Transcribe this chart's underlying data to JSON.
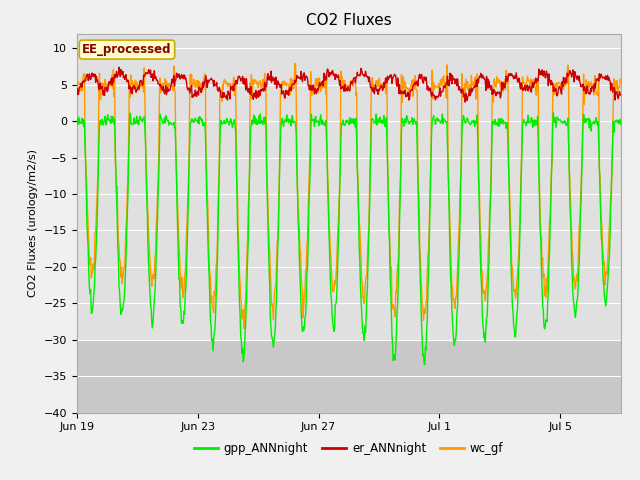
{
  "title": "CO2 Fluxes",
  "ylabel": "CO2 Fluxes (urology/m2/s)",
  "ylim": [
    -40,
    12
  ],
  "yticks": [
    -40,
    -35,
    -30,
    -25,
    -20,
    -15,
    -10,
    -5,
    0,
    5,
    10
  ],
  "fig_bg": "#f0f0f0",
  "plot_bg": "#e0e0e0",
  "shade_below": -30,
  "shade_color": "#c8c8c8",
  "title_fontsize": 11,
  "label_fontsize": 8,
  "tick_fontsize": 8,
  "annotation_text": "EE_processed",
  "annotation_color": "#8b0000",
  "annotation_bg": "#ffffcc",
  "annotation_border": "#ccaa00",
  "grid_color": "#ffffff",
  "series": [
    {
      "name": "gpp_ANNnight",
      "color": "#00ee00",
      "lw": 1.0
    },
    {
      "name": "er_ANNnight",
      "color": "#cc0000",
      "lw": 1.0
    },
    {
      "name": "wc_gf",
      "color": "#ff9900",
      "lw": 1.0
    }
  ],
  "n_days": 18,
  "points_per_day": 48,
  "xtick_labels": [
    "Jun 19",
    "Jun 23",
    "Jun 27",
    "Jul 1",
    "Jul 5"
  ],
  "xtick_positions": [
    0,
    4,
    8,
    12,
    16
  ]
}
